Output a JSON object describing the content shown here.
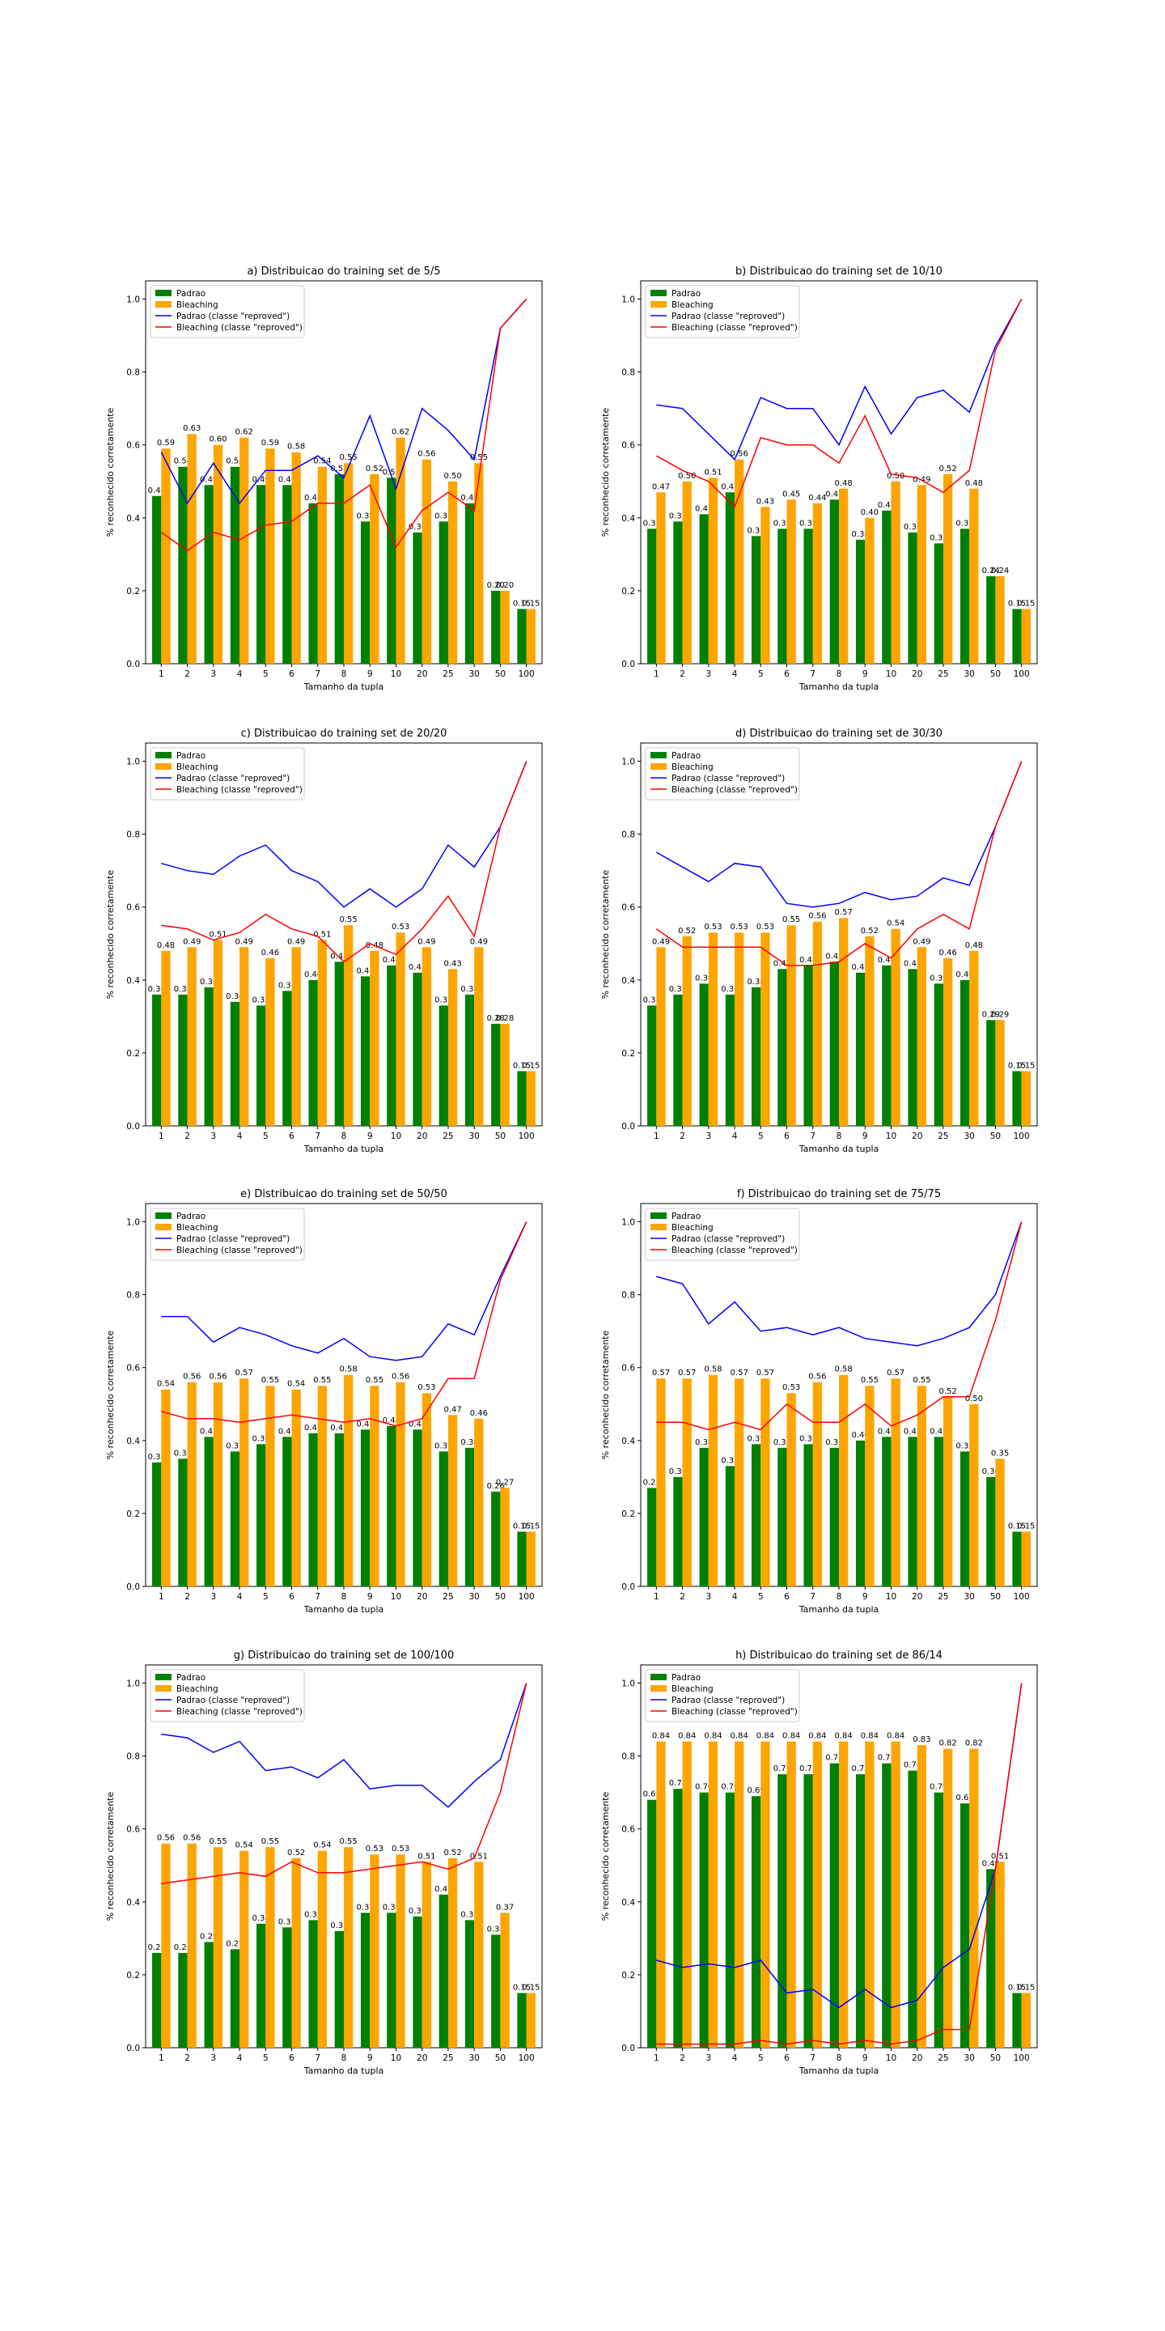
{
  "figure": {
    "colors": {
      "padrao": "#008000",
      "bleaching": "#ffa500",
      "padrao_line": "#0000ff",
      "bleaching_line": "#ff0000"
    },
    "legend": [
      "Padrao",
      "Bleaching",
      "Padrao (classe \"reproved\")",
      "Bleaching (classe \"reproved\")"
    ]
  },
  "chart_data": [
    {
      "type": "bar",
      "title": "a) Distribuicao do training set de 5/5",
      "xlabel": "Tamanho da tupla",
      "ylabel": "% reconhecido corretamente",
      "ylim": [
        0,
        1.05
      ],
      "yticks": [
        "0.0",
        "0.2",
        "0.4",
        "0.6",
        "0.8",
        "1.0"
      ],
      "categories": [
        "1",
        "2",
        "3",
        "4",
        "5",
        "6",
        "7",
        "8",
        "9",
        "10",
        "20",
        "25",
        "30",
        "50",
        "100"
      ],
      "legend_position": "top-left",
      "series": [
        {
          "name": "Padrao",
          "kind": "bar",
          "values": [
            0.46,
            0.54,
            0.49,
            0.54,
            0.49,
            0.49,
            0.44,
            0.52,
            0.39,
            0.51,
            0.36,
            0.39,
            0.44,
            0.2,
            0.15
          ]
        },
        {
          "name": "Bleaching",
          "kind": "bar",
          "values": [
            0.59,
            0.63,
            0.6,
            0.62,
            0.59,
            0.58,
            0.54,
            0.55,
            0.52,
            0.62,
            0.56,
            0.5,
            0.55,
            0.2,
            0.15
          ]
        },
        {
          "name": "Padrao (classe \"reproved\")",
          "kind": "line",
          "values": [
            0.58,
            0.44,
            0.55,
            0.44,
            0.53,
            0.53,
            0.57,
            0.51,
            0.68,
            0.48,
            0.7,
            0.64,
            0.56,
            0.92,
            1.0
          ]
        },
        {
          "name": "Bleaching (classe \"reproved\")",
          "kind": "line",
          "values": [
            0.36,
            0.31,
            0.36,
            0.34,
            0.38,
            0.39,
            0.44,
            0.44,
            0.49,
            0.32,
            0.42,
            0.47,
            0.42,
            0.92,
            1.0
          ]
        }
      ]
    },
    {
      "type": "bar",
      "title": "b) Distribuicao do training set de 10/10",
      "xlabel": "Tamanho da tupla",
      "ylabel": "% reconhecido corretamente",
      "ylim": [
        0,
        1.05
      ],
      "yticks": [
        "0.0",
        "0.2",
        "0.4",
        "0.6",
        "0.8",
        "1.0"
      ],
      "categories": [
        "1",
        "2",
        "3",
        "4",
        "5",
        "6",
        "7",
        "8",
        "9",
        "10",
        "20",
        "25",
        "30",
        "50",
        "100"
      ],
      "legend_position": "top-left",
      "series": [
        {
          "name": "Padrao",
          "kind": "bar",
          "values": [
            0.37,
            0.39,
            0.41,
            0.47,
            0.35,
            0.37,
            0.37,
            0.45,
            0.34,
            0.42,
            0.36,
            0.33,
            0.37,
            0.24,
            0.15
          ]
        },
        {
          "name": "Bleaching",
          "kind": "bar",
          "values": [
            0.47,
            0.5,
            0.51,
            0.56,
            0.43,
            0.45,
            0.44,
            0.48,
            0.4,
            0.5,
            0.49,
            0.52,
            0.48,
            0.24,
            0.15
          ]
        },
        {
          "name": "Padrao (classe \"reproved\")",
          "kind": "line",
          "values": [
            0.71,
            0.7,
            0.63,
            0.56,
            0.73,
            0.7,
            0.7,
            0.6,
            0.76,
            0.63,
            0.73,
            0.75,
            0.69,
            0.87,
            1.0
          ]
        },
        {
          "name": "Bleaching (classe \"reproved\")",
          "kind": "line",
          "values": [
            0.57,
            0.53,
            0.5,
            0.43,
            0.62,
            0.6,
            0.6,
            0.55,
            0.68,
            0.52,
            0.51,
            0.47,
            0.53,
            0.86,
            1.0
          ]
        }
      ]
    },
    {
      "type": "bar",
      "title": "c) Distribuicao do training set de 20/20",
      "xlabel": "Tamanho da tupla",
      "ylabel": "% reconhecido corretamente",
      "ylim": [
        0,
        1.05
      ],
      "yticks": [
        "0.0",
        "0.2",
        "0.4",
        "0.6",
        "0.8",
        "1.0"
      ],
      "categories": [
        "1",
        "2",
        "3",
        "4",
        "5",
        "6",
        "7",
        "8",
        "9",
        "10",
        "20",
        "25",
        "30",
        "50",
        "100"
      ],
      "legend_position": "top-left",
      "series": [
        {
          "name": "Padrao",
          "kind": "bar",
          "values": [
            0.36,
            0.36,
            0.38,
            0.34,
            0.33,
            0.37,
            0.4,
            0.45,
            0.41,
            0.44,
            0.42,
            0.33,
            0.36,
            0.28,
            0.15
          ]
        },
        {
          "name": "Bleaching",
          "kind": "bar",
          "values": [
            0.48,
            0.49,
            0.51,
            0.49,
            0.46,
            0.49,
            0.51,
            0.55,
            0.48,
            0.53,
            0.49,
            0.43,
            0.49,
            0.28,
            0.15
          ]
        },
        {
          "name": "Padrao (classe \"reproved\")",
          "kind": "line",
          "values": [
            0.72,
            0.7,
            0.69,
            0.74,
            0.77,
            0.7,
            0.67,
            0.6,
            0.65,
            0.6,
            0.65,
            0.77,
            0.71,
            0.82,
            1.0
          ]
        },
        {
          "name": "Bleaching (classe \"reproved\")",
          "kind": "line",
          "values": [
            0.55,
            0.54,
            0.51,
            0.53,
            0.58,
            0.54,
            0.52,
            0.45,
            0.5,
            0.47,
            0.54,
            0.63,
            0.52,
            0.82,
            1.0
          ]
        }
      ]
    },
    {
      "type": "bar",
      "title": "d) Distribuicao do training set de 30/30",
      "xlabel": "Tamanho da tupla",
      "ylabel": "% reconhecido corretamente",
      "ylim": [
        0,
        1.05
      ],
      "yticks": [
        "0.0",
        "0.2",
        "0.4",
        "0.6",
        "0.8",
        "1.0"
      ],
      "categories": [
        "1",
        "2",
        "3",
        "4",
        "5",
        "6",
        "7",
        "8",
        "9",
        "10",
        "20",
        "25",
        "30",
        "50",
        "100"
      ],
      "legend_position": "top-left",
      "series": [
        {
          "name": "Padrao",
          "kind": "bar",
          "values": [
            0.33,
            0.36,
            0.39,
            0.36,
            0.38,
            0.43,
            0.44,
            0.45,
            0.42,
            0.44,
            0.43,
            0.39,
            0.4,
            0.29,
            0.15
          ]
        },
        {
          "name": "Bleaching",
          "kind": "bar",
          "values": [
            0.49,
            0.52,
            0.53,
            0.53,
            0.53,
            0.55,
            0.56,
            0.57,
            0.52,
            0.54,
            0.49,
            0.46,
            0.48,
            0.29,
            0.15
          ]
        },
        {
          "name": "Padrao (classe \"reproved\")",
          "kind": "line",
          "values": [
            0.75,
            0.71,
            0.67,
            0.72,
            0.71,
            0.61,
            0.6,
            0.61,
            0.64,
            0.62,
            0.63,
            0.68,
            0.66,
            0.82,
            1.0
          ]
        },
        {
          "name": "Bleaching (classe \"reproved\")",
          "kind": "line",
          "values": [
            0.54,
            0.49,
            0.49,
            0.49,
            0.49,
            0.44,
            0.44,
            0.45,
            0.5,
            0.46,
            0.54,
            0.58,
            0.54,
            0.82,
            1.0
          ]
        }
      ]
    },
    {
      "type": "bar",
      "title": "e) Distribuicao do training set de 50/50",
      "xlabel": "Tamanho da tupla",
      "ylabel": "% reconhecido corretamente",
      "ylim": [
        0,
        1.05
      ],
      "yticks": [
        "0.0",
        "0.2",
        "0.4",
        "0.6",
        "0.8",
        "1.0"
      ],
      "categories": [
        "1",
        "2",
        "3",
        "4",
        "5",
        "6",
        "7",
        "8",
        "9",
        "10",
        "20",
        "25",
        "30",
        "50",
        "100"
      ],
      "legend_position": "top-left",
      "series": [
        {
          "name": "Padrao",
          "kind": "bar",
          "values": [
            0.34,
            0.35,
            0.41,
            0.37,
            0.39,
            0.41,
            0.42,
            0.42,
            0.43,
            0.44,
            0.43,
            0.37,
            0.38,
            0.26,
            0.15
          ]
        },
        {
          "name": "Bleaching",
          "kind": "bar",
          "values": [
            0.54,
            0.56,
            0.56,
            0.57,
            0.55,
            0.54,
            0.55,
            0.58,
            0.55,
            0.56,
            0.53,
            0.47,
            0.46,
            0.27,
            0.15
          ]
        },
        {
          "name": "Padrao (classe \"reproved\")",
          "kind": "line",
          "values": [
            0.74,
            0.74,
            0.67,
            0.71,
            0.69,
            0.66,
            0.64,
            0.68,
            0.63,
            0.62,
            0.63,
            0.72,
            0.69,
            0.85,
            1.0
          ]
        },
        {
          "name": "Bleaching (classe \"reproved\")",
          "kind": "line",
          "values": [
            0.48,
            0.46,
            0.46,
            0.45,
            0.46,
            0.47,
            0.46,
            0.45,
            0.46,
            0.44,
            0.46,
            0.57,
            0.57,
            0.84,
            1.0
          ]
        }
      ]
    },
    {
      "type": "bar",
      "title": "f) Distribuicao do training set de 75/75",
      "xlabel": "Tamanho da tupla",
      "ylabel": "% reconhecido corretamente",
      "ylim": [
        0,
        1.05
      ],
      "yticks": [
        "0.0",
        "0.2",
        "0.4",
        "0.6",
        "0.8",
        "1.0"
      ],
      "categories": [
        "1",
        "2",
        "3",
        "4",
        "5",
        "6",
        "7",
        "8",
        "9",
        "10",
        "20",
        "25",
        "30",
        "50",
        "100"
      ],
      "legend_position": "top-left",
      "series": [
        {
          "name": "Padrao",
          "kind": "bar",
          "values": [
            0.27,
            0.3,
            0.38,
            0.33,
            0.39,
            0.38,
            0.39,
            0.38,
            0.4,
            0.41,
            0.41,
            0.41,
            0.37,
            0.3,
            0.15
          ]
        },
        {
          "name": "Bleaching",
          "kind": "bar",
          "values": [
            0.57,
            0.57,
            0.58,
            0.57,
            0.57,
            0.53,
            0.56,
            0.58,
            0.55,
            0.57,
            0.55,
            0.52,
            0.5,
            0.35,
            0.15
          ]
        },
        {
          "name": "Padrao (classe \"reproved\")",
          "kind": "line",
          "values": [
            0.85,
            0.83,
            0.72,
            0.78,
            0.7,
            0.71,
            0.69,
            0.71,
            0.68,
            0.67,
            0.66,
            0.68,
            0.71,
            0.8,
            1.0
          ]
        },
        {
          "name": "Bleaching (classe \"reproved\")",
          "kind": "line",
          "values": [
            0.45,
            0.45,
            0.43,
            0.45,
            0.43,
            0.5,
            0.45,
            0.45,
            0.5,
            0.44,
            0.47,
            0.52,
            0.52,
            0.73,
            1.0
          ]
        }
      ]
    },
    {
      "type": "bar",
      "title": "g) Distribuicao do training set de 100/100",
      "xlabel": "Tamanho da tupla",
      "ylabel": "% reconhecido corretamente",
      "ylim": [
        0,
        1.05
      ],
      "yticks": [
        "0.0",
        "0.2",
        "0.4",
        "0.6",
        "0.8",
        "1.0"
      ],
      "categories": [
        "1",
        "2",
        "3",
        "4",
        "5",
        "6",
        "7",
        "8",
        "9",
        "10",
        "20",
        "25",
        "30",
        "50",
        "100"
      ],
      "legend_position": "top-left",
      "series": [
        {
          "name": "Padrao",
          "kind": "bar",
          "values": [
            0.26,
            0.26,
            0.29,
            0.27,
            0.34,
            0.33,
            0.35,
            0.32,
            0.37,
            0.37,
            0.36,
            0.42,
            0.35,
            0.31,
            0.15
          ]
        },
        {
          "name": "Bleaching",
          "kind": "bar",
          "values": [
            0.56,
            0.56,
            0.55,
            0.54,
            0.55,
            0.52,
            0.54,
            0.55,
            0.53,
            0.53,
            0.51,
            0.52,
            0.51,
            0.37,
            0.15
          ]
        },
        {
          "name": "Padrao (classe \"reproved\")",
          "kind": "line",
          "values": [
            0.86,
            0.85,
            0.81,
            0.84,
            0.76,
            0.77,
            0.74,
            0.79,
            0.71,
            0.72,
            0.72,
            0.66,
            0.73,
            0.79,
            1.0
          ]
        },
        {
          "name": "Bleaching (classe \"reproved\")",
          "kind": "line",
          "values": [
            0.45,
            0.46,
            0.47,
            0.48,
            0.47,
            0.51,
            0.48,
            0.48,
            0.49,
            0.5,
            0.51,
            0.49,
            0.52,
            0.7,
            1.0
          ]
        }
      ]
    },
    {
      "type": "bar",
      "title": "h) Distribuicao do training set de 86/14",
      "xlabel": "Tamanho da tupla",
      "ylabel": "% reconhecido corretamente",
      "ylim": [
        0,
        1.05
      ],
      "yticks": [
        "0.0",
        "0.2",
        "0.4",
        "0.6",
        "0.8",
        "1.0"
      ],
      "categories": [
        "1",
        "2",
        "3",
        "4",
        "5",
        "6",
        "7",
        "8",
        "9",
        "10",
        "20",
        "25",
        "30",
        "50",
        "100"
      ],
      "legend_position": "top-left",
      "series": [
        {
          "name": "Padrao",
          "kind": "bar",
          "values": [
            0.68,
            0.71,
            0.7,
            0.7,
            0.69,
            0.75,
            0.75,
            0.78,
            0.75,
            0.78,
            0.76,
            0.7,
            0.67,
            0.49,
            0.15
          ]
        },
        {
          "name": "Bleaching",
          "kind": "bar",
          "values": [
            0.84,
            0.84,
            0.84,
            0.84,
            0.84,
            0.84,
            0.84,
            0.84,
            0.84,
            0.84,
            0.83,
            0.82,
            0.82,
            0.51,
            0.15
          ]
        },
        {
          "name": "Padrao (classe \"reproved\")",
          "kind": "line",
          "values": [
            0.24,
            0.22,
            0.23,
            0.22,
            0.24,
            0.15,
            0.16,
            0.11,
            0.16,
            0.11,
            0.13,
            0.22,
            0.27,
            0.49,
            1.0
          ]
        },
        {
          "name": "Bleaching (classe \"reproved\")",
          "kind": "line",
          "values": [
            0.01,
            0.01,
            0.01,
            0.01,
            0.02,
            0.01,
            0.02,
            0.01,
            0.02,
            0.01,
            0.02,
            0.05,
            0.05,
            0.49,
            1.0
          ]
        }
      ]
    }
  ]
}
